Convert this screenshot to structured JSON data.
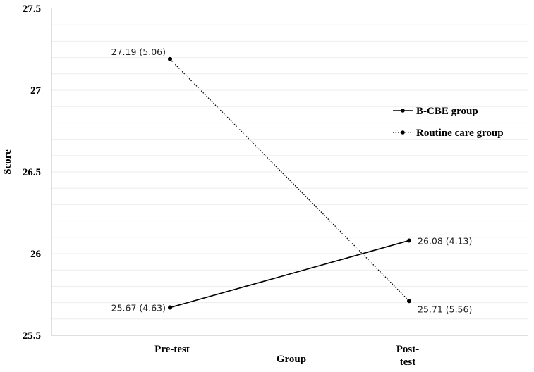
{
  "chart_data": {
    "type": "line",
    "title": "",
    "xlabel": "Group",
    "ylabel": "Score",
    "categories": [
      [
        "Pre-test"
      ],
      [
        "Post-",
        "test"
      ]
    ],
    "ylim": [
      25.5,
      27.5
    ],
    "yticks": [
      "25.5",
      "26",
      "26.5",
      "27",
      "27.5"
    ],
    "grid": true,
    "legend_position": "right",
    "series": [
      {
        "name": "B-CBE group",
        "style": "solid",
        "color": "#000000",
        "values": [
          25.67,
          26.08
        ],
        "labels": [
          "25.67 (4.63)",
          "26.08 (4.13)"
        ]
      },
      {
        "name": "Routine care group",
        "style": "dotted",
        "color": "#000000",
        "values": [
          27.19,
          25.71
        ],
        "labels": [
          "27.19 (5.06)",
          "25.71 (5.56)"
        ]
      }
    ]
  }
}
